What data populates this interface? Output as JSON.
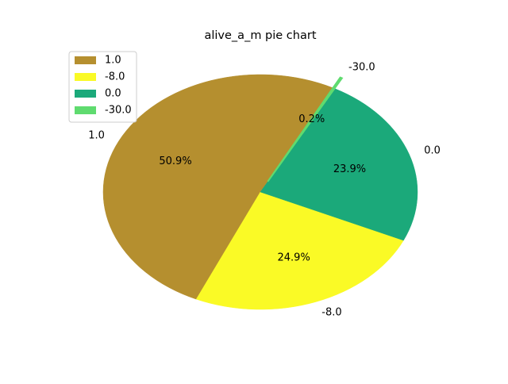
{
  "chart_data": {
    "type": "pie",
    "title": "alive_a_m pie chart",
    "legend_position": "top-left",
    "slices": [
      {
        "label": "1.0",
        "percent": 50.9,
        "pct_label": "50.9%",
        "color": "#b58f2f"
      },
      {
        "label": "-8.0",
        "percent": 24.9,
        "pct_label": "24.9%",
        "color": "#fafa26"
      },
      {
        "label": "0.0",
        "percent": 23.9,
        "pct_label": "23.9%",
        "color": "#1ba97a"
      },
      {
        "label": "-30.0",
        "percent": 0.2,
        "pct_label": "0.2%",
        "color": "#5fdb6f"
      }
    ]
  }
}
